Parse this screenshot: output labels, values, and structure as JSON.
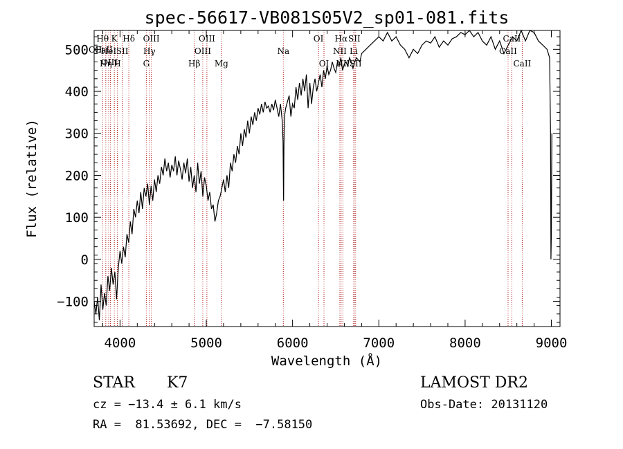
{
  "chart_data": {
    "type": "line",
    "title": "spec-56617-VB081S05V2_sp01-081.fits",
    "xlabel": "Wavelength (Å)",
    "ylabel": "Flux (relative)",
    "xlim": [
      3700,
      9100
    ],
    "ylim": [
      -160,
      545
    ],
    "xticks": [
      4000,
      5000,
      6000,
      7000,
      8000,
      9000
    ],
    "yticks": [
      -100,
      0,
      100,
      200,
      300,
      400,
      500
    ],
    "grid": false,
    "line_color": "#000000",
    "marker_color": "#b22222",
    "series": [
      {
        "x": [
          3700,
          3720,
          3740,
          3760,
          3780,
          3800,
          3820,
          3840,
          3860,
          3880,
          3900,
          3920,
          3940,
          3960,
          3980,
          4000,
          4020,
          4040,
          4060,
          4080,
          4100,
          4120,
          4140,
          4160,
          4180,
          4200,
          4220,
          4240,
          4260,
          4280,
          4300,
          4320,
          4340,
          4360,
          4380,
          4400,
          4420,
          4440,
          4460,
          4480,
          4500,
          4520,
          4540,
          4560,
          4580,
          4600,
          4620,
          4640,
          4660,
          4680,
          4700,
          4720,
          4740,
          4760,
          4780,
          4800,
          4820,
          4840,
          4860,
          4880,
          4900,
          4920,
          4940,
          4960,
          4980,
          5000,
          5020,
          5040,
          5060,
          5080,
          5100,
          5120,
          5140,
          5160,
          5180,
          5200,
          5220,
          5240,
          5260,
          5280,
          5300,
          5320,
          5340,
          5360,
          5380,
          5400,
          5420,
          5440,
          5460,
          5480,
          5500,
          5520,
          5540,
          5560,
          5580,
          5600,
          5620,
          5640,
          5660,
          5680,
          5700,
          5720,
          5740,
          5760,
          5780,
          5800,
          5820,
          5840,
          5860,
          5880,
          5890,
          5893,
          5896,
          5899,
          5902,
          5905,
          5910,
          5920,
          5940,
          5960,
          5980,
          6000,
          6020,
          6040,
          6060,
          6080,
          6100,
          6120,
          6140,
          6160,
          6180,
          6200,
          6220,
          6240,
          6260,
          6280,
          6300,
          6320,
          6340,
          6360,
          6380,
          6400,
          6420,
          6440,
          6460,
          6480,
          6500,
          6520,
          6540,
          6560,
          6580,
          6600,
          6620,
          6640,
          6660,
          6680,
          6700,
          6720,
          6740,
          6760,
          6780,
          6800,
          6850,
          6900,
          6950,
          7000,
          7050,
          7100,
          7150,
          7200,
          7250,
          7300,
          7350,
          7400,
          7450,
          7500,
          7550,
          7600,
          7650,
          7700,
          7750,
          7800,
          7850,
          7900,
          7950,
          8000,
          8050,
          8100,
          8150,
          8200,
          8250,
          8300,
          8350,
          8400,
          8450,
          8500,
          8550,
          8600,
          8650,
          8700,
          8750,
          8800,
          8850,
          8900,
          8950,
          8980,
          8990,
          8995,
          9000,
          9005
        ],
        "y": [
          -100,
          -130,
          -90,
          -145,
          -60,
          -120,
          -80,
          -110,
          -40,
          -75,
          -20,
          -60,
          -30,
          -95,
          -20,
          20,
          -10,
          30,
          5,
          60,
          40,
          90,
          60,
          120,
          100,
          140,
          110,
          160,
          120,
          170,
          150,
          180,
          130,
          175,
          140,
          190,
          160,
          200,
          180,
          220,
          200,
          240,
          210,
          230,
          195,
          225,
          210,
          245,
          200,
          235,
          215,
          190,
          230,
          205,
          240,
          185,
          220,
          170,
          200,
          160,
          230,
          180,
          210,
          150,
          195,
          175,
          140,
          160,
          120,
          130,
          90,
          110,
          140,
          150,
          170,
          190,
          160,
          200,
          170,
          230,
          210,
          250,
          230,
          270,
          250,
          300,
          270,
          310,
          290,
          330,
          300,
          340,
          320,
          350,
          330,
          360,
          345,
          370,
          350,
          375,
          360,
          365,
          350,
          370,
          355,
          380,
          360,
          340,
          370,
          330,
          280,
          200,
          140,
          250,
          300,
          330,
          345,
          360,
          375,
          390,
          340,
          370,
          360,
          410,
          380,
          420,
          390,
          430,
          400,
          440,
          360,
          420,
          370,
          410,
          430,
          400,
          420,
          440,
          410,
          450,
          430,
          460,
          440,
          450,
          470,
          455,
          445,
          470,
          460,
          480,
          450,
          465,
          470,
          460,
          480,
          470,
          455,
          470,
          480,
          475,
          470,
          490,
          500,
          510,
          520,
          530,
          520,
          540,
          520,
          530,
          510,
          500,
          480,
          500,
          490,
          510,
          520,
          515,
          530,
          505,
          520,
          510,
          525,
          530,
          540,
          535,
          545,
          530,
          540,
          520,
          510,
          530,
          500,
          520,
          490,
          510,
          530,
          520,
          545,
          520,
          550,
          540,
          520,
          510,
          500,
          480,
          300,
          0,
          60,
          300
        ]
      }
    ],
    "line_markers": [
      {
        "x": 3798,
        "label": "Hθ",
        "row": 1
      },
      {
        "x": 3835,
        "label": "Hη",
        "row": 3
      },
      {
        "x": 3869,
        "label": "HeI",
        "row": 2
      },
      {
        "x": 3889,
        "label": "",
        "row": 0
      },
      {
        "x": 3934,
        "label": "K",
        "row": 1
      },
      {
        "x": 3969,
        "label": "H",
        "row": 3
      },
      {
        "x": 4026,
        "label": "SII",
        "row": 2
      },
      {
        "x": 4102,
        "label": "Hδ",
        "row": 1
      },
      {
        "x": 4305,
        "label": "G",
        "row": 3
      },
      {
        "x": 4340,
        "label": "Hγ",
        "row": 2
      },
      {
        "x": 4363,
        "label": "OIII",
        "row": 1
      },
      {
        "x": 4861,
        "label": "Hβ",
        "row": 3
      },
      {
        "x": 4959,
        "label": "OIII",
        "row": 2
      },
      {
        "x": 5007,
        "label": "OIII",
        "row": 1
      },
      {
        "x": 5175,
        "label": "Mg",
        "row": 3
      },
      {
        "x": 5893,
        "label": "Na",
        "row": 2
      },
      {
        "x": 6300,
        "label": "OI",
        "row": 1
      },
      {
        "x": 6364,
        "label": "OI",
        "row": 3
      },
      {
        "x": 6548,
        "label": "NII",
        "row": 2
      },
      {
        "x": 6563,
        "label": "Hα",
        "row": 1
      },
      {
        "x": 6583,
        "label": "NII",
        "row": 3
      },
      {
        "x": 6708,
        "label": "Li",
        "row": 2
      },
      {
        "x": 6716,
        "label": "SII",
        "row": 1
      },
      {
        "x": 6731,
        "label": "SII",
        "row": 3
      },
      {
        "x": 8498,
        "label": "CaII",
        "row": 2
      },
      {
        "x": 8542,
        "label": "CaII",
        "row": 1
      },
      {
        "x": 8662,
        "label": "CaII",
        "row": 3
      }
    ],
    "left_marker_labels": [
      "OII",
      "CaII",
      "OIII"
    ]
  },
  "info": {
    "class": "STAR",
    "subclass": "K7",
    "survey": "LAMOST DR2",
    "cz": "cz = −13.4 ± 6.1 km/s",
    "obs_date": "Obs-Date: 20131120",
    "radec": "RA =  81.53692, DEC =  −7.58150"
  }
}
